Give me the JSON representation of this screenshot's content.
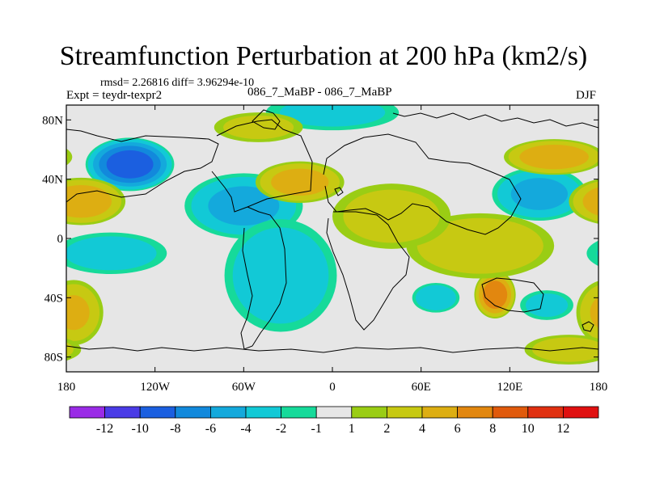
{
  "chart_data": {
    "type": "heatmap",
    "title": "Streamfunction Perturbation at 200 hPa (km2/s)",
    "stats_line": "rmsd= 2.26816 diff= 3.96294e-10",
    "left_label": "Expt = teydr-texpr2",
    "center_label": "086_7_MaBP - 086_7_MaBP",
    "right_label": "DJF",
    "x_ticks": [
      "180",
      "120W",
      "60W",
      "0",
      "60E",
      "120E",
      "180"
    ],
    "x_tick_values": [
      -180,
      -120,
      -60,
      0,
      60,
      120,
      180
    ],
    "y_ticks": [
      "80N",
      "40N",
      "0",
      "40S",
      "80S"
    ],
    "y_tick_values": [
      80,
      40,
      0,
      -40,
      -80
    ],
    "xlim": [
      -180,
      180
    ],
    "ylim": [
      -90,
      90
    ],
    "colorbar_labels": [
      "-12",
      "-10",
      "-8",
      "-6",
      "-4",
      "-2",
      "-1",
      "1",
      "2",
      "4",
      "6",
      "8",
      "10",
      "12"
    ],
    "colorbar_colors": [
      "#9A2BE6",
      "#4A3BE6",
      "#1B5FE0",
      "#1289DC",
      "#14A9DC",
      "#12C9D6",
      "#16DA9A",
      "#E6E6E6",
      "#9ACD14",
      "#C7C912",
      "#DDAE12",
      "#E2870F",
      "#E05A0C",
      "#E03010",
      "#E01010"
    ],
    "field_blobs": [
      {
        "lon": -137,
        "lat": 50,
        "value": -9.5,
        "rx": 30,
        "ry": 18
      },
      {
        "lon": -60,
        "lat": 22,
        "value": -4.5,
        "rx": 40,
        "ry": 22
      },
      {
        "lon": -35,
        "lat": -25,
        "value": -3.5,
        "rx": 38,
        "ry": 38
      },
      {
        "lon": -150,
        "lat": -10,
        "value": -2.8,
        "rx": 38,
        "ry": 14
      },
      {
        "lon": 140,
        "lat": 30,
        "value": -4.5,
        "rx": 32,
        "ry": 18
      },
      {
        "lon": 0,
        "lat": 85,
        "value": -2.5,
        "rx": 45,
        "ry": 12
      },
      {
        "lon": 70,
        "lat": -40,
        "value": -3.5,
        "rx": 16,
        "ry": 10
      },
      {
        "lon": 145,
        "lat": -45,
        "value": -2.5,
        "rx": 18,
        "ry": 10
      },
      {
        "lon": -170,
        "lat": 25,
        "value": 5.5,
        "rx": 30,
        "ry": 16
      },
      {
        "lon": -22,
        "lat": 38,
        "value": 5.0,
        "rx": 30,
        "ry": 14
      },
      {
        "lon": 150,
        "lat": 55,
        "value": 5.5,
        "rx": 34,
        "ry": 12
      },
      {
        "lon": 110,
        "lat": -38,
        "value": 7.5,
        "rx": 14,
        "ry": 16
      },
      {
        "lon": 100,
        "lat": -5,
        "value": 3.5,
        "rx": 50,
        "ry": 22
      },
      {
        "lon": 40,
        "lat": 15,
        "value": 2.8,
        "rx": 40,
        "ry": 22
      },
      {
        "lon": -175,
        "lat": -50,
        "value": 4.0,
        "rx": 20,
        "ry": 22
      },
      {
        "lon": -50,
        "lat": 75,
        "value": 2.5,
        "rx": 30,
        "ry": 10
      },
      {
        "lon": 160,
        "lat": -75,
        "value": 3.0,
        "rx": 30,
        "ry": 10
      }
    ]
  }
}
